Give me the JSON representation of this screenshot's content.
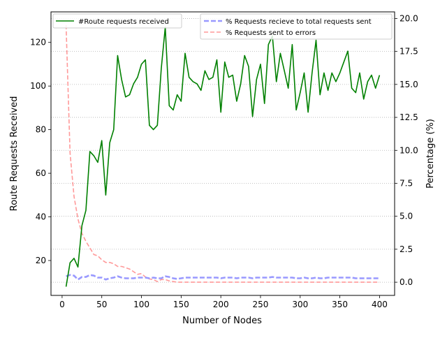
{
  "chart_data": {
    "type": "line",
    "xlabel": "Number of Nodes",
    "ylabel_left": "Route Requests Received",
    "ylabel_right": "Percentage (%)",
    "xlim": [
      -14,
      419
    ],
    "ylim_left": [
      4,
      134
    ],
    "ylim_right": [
      -1,
      20.5
    ],
    "x_ticks": [
      0,
      50,
      100,
      150,
      200,
      250,
      300,
      350,
      400
    ],
    "y_left_ticks": [
      20,
      40,
      60,
      80,
      100,
      120
    ],
    "y_right_ticks": [
      0.0,
      2.5,
      5.0,
      7.5,
      10.0,
      12.5,
      15.0,
      17.5,
      20.0
    ],
    "grid": "horizontal dotted on right axis",
    "legend_left": {
      "placement": "top-left",
      "entries": [
        "#Route requests received"
      ]
    },
    "legend_right": {
      "placement": "top-right",
      "entries": [
        "% Requests recieve to total requests sent",
        "% Requests sent to errors"
      ]
    },
    "series": [
      {
        "name": "#Route requests received",
        "axis": "left",
        "color": "#008000",
        "style": "solid",
        "x": [
          5,
          10,
          15,
          20,
          25,
          30,
          35,
          40,
          45,
          50,
          55,
          60,
          65,
          70,
          75,
          80,
          85,
          90,
          95,
          100,
          105,
          110,
          115,
          120,
          125,
          130,
          135,
          140,
          145,
          150,
          155,
          160,
          165,
          170,
          175,
          180,
          185,
          190,
          195,
          200,
          205,
          210,
          215,
          220,
          225,
          230,
          235,
          240,
          245,
          250,
          255,
          260,
          265,
          270,
          275,
          280,
          285,
          290,
          295,
          300,
          305,
          310,
          315,
          320,
          325,
          330,
          335,
          340,
          345,
          350,
          355,
          360,
          365,
          370,
          375,
          380,
          385,
          390,
          395,
          400
        ],
        "values": [
          8,
          19,
          21,
          17,
          36,
          43,
          70,
          68,
          65,
          75,
          50,
          74,
          80,
          114,
          103,
          95,
          96,
          101,
          104,
          110,
          112,
          82,
          80,
          82,
          108,
          127,
          91,
          89,
          96,
          93,
          115,
          104,
          102,
          101,
          98,
          107,
          103,
          104,
          112,
          88,
          111,
          104,
          105,
          93,
          101,
          114,
          109,
          86,
          103,
          110,
          92,
          119,
          123,
          102,
          115,
          107,
          99,
          119,
          89,
          97,
          106,
          88,
          106,
          121,
          96,
          106,
          98,
          106,
          102,
          106,
          111,
          116,
          99,
          97,
          106,
          94,
          102,
          105,
          99,
          105
        ]
      },
      {
        "name": "% Requests recieve to total requests sent",
        "axis": "right",
        "color": "#9999ff",
        "style": "dashed",
        "x": [
          5,
          10,
          15,
          20,
          25,
          30,
          35,
          40,
          45,
          50,
          55,
          60,
          65,
          70,
          75,
          80,
          85,
          90,
          95,
          100,
          105,
          110,
          115,
          120,
          125,
          130,
          135,
          140,
          145,
          150,
          155,
          160,
          165,
          170,
          175,
          180,
          185,
          190,
          195,
          200,
          205,
          210,
          215,
          220,
          225,
          230,
          235,
          240,
          245,
          250,
          255,
          260,
          265,
          270,
          275,
          280,
          285,
          290,
          295,
          300,
          305,
          310,
          315,
          320,
          325,
          330,
          335,
          340,
          345,
          350,
          355,
          360,
          365,
          370,
          375,
          380,
          385,
          390,
          395,
          400
        ],
        "values": [
          0.45,
          0.55,
          0.5,
          0.2,
          0.4,
          0.4,
          0.55,
          0.5,
          0.35,
          0.35,
          0.2,
          0.3,
          0.35,
          0.45,
          0.35,
          0.3,
          0.3,
          0.3,
          0.35,
          0.35,
          0.35,
          0.3,
          0.35,
          0.3,
          0.3,
          0.45,
          0.4,
          0.3,
          0.25,
          0.3,
          0.35,
          0.35,
          0.35,
          0.35,
          0.35,
          0.35,
          0.35,
          0.35,
          0.35,
          0.3,
          0.35,
          0.35,
          0.35,
          0.3,
          0.35,
          0.35,
          0.35,
          0.3,
          0.35,
          0.35,
          0.35,
          0.35,
          0.4,
          0.35,
          0.35,
          0.35,
          0.35,
          0.35,
          0.3,
          0.3,
          0.35,
          0.3,
          0.3,
          0.35,
          0.3,
          0.3,
          0.35,
          0.35,
          0.35,
          0.35,
          0.35,
          0.35,
          0.35,
          0.3,
          0.3,
          0.3,
          0.3,
          0.3,
          0.3,
          0.3
        ]
      },
      {
        "name": "% Requests sent to errors",
        "axis": "right",
        "color": "#ff9999",
        "style": "dashed",
        "x": [
          5,
          10,
          15,
          20,
          25,
          30,
          35,
          40,
          45,
          50,
          55,
          60,
          65,
          70,
          75,
          80,
          85,
          90,
          95,
          100,
          105,
          110,
          115,
          120,
          125,
          130,
          135,
          140,
          145,
          150,
          160,
          175,
          200,
          250,
          300,
          350,
          400
        ],
        "values": [
          19.5,
          9.8,
          6.5,
          4.8,
          3.7,
          3.1,
          2.6,
          2.1,
          2.0,
          1.7,
          1.5,
          1.5,
          1.4,
          1.2,
          1.2,
          1.1,
          1.0,
          0.8,
          0.6,
          0.65,
          0.4,
          0.25,
          0.2,
          0.05,
          0.2,
          0.2,
          0.1,
          0.05,
          0.0,
          0.0,
          0.0,
          0.0,
          0.0,
          0.0,
          0.0,
          0.0,
          0.0
        ]
      }
    ]
  }
}
